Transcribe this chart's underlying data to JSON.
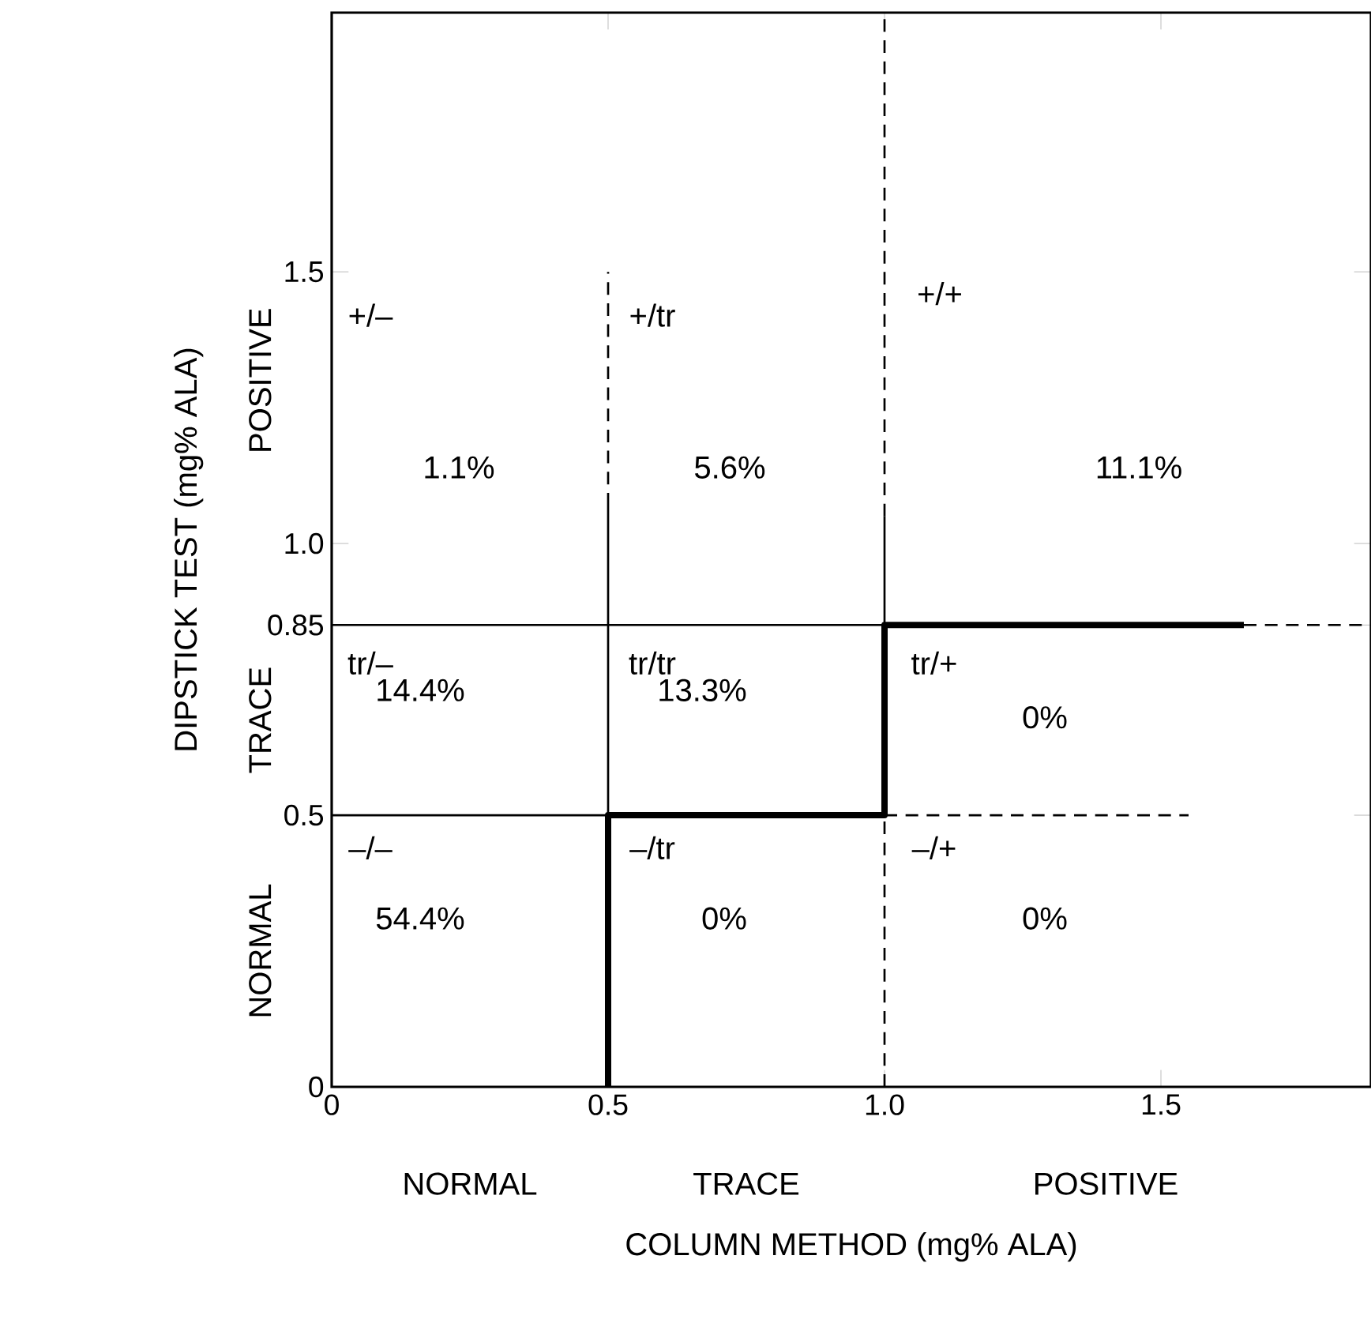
{
  "chart_data": {
    "type": "line",
    "xlabel": "COLUMN METHOD (mg% ALA)",
    "ylabel": "DIPSTICK TEST (mg% ALA)",
    "xlim": [
      0,
      1.88
    ],
    "ylim": [
      0,
      1.977
    ],
    "xticks": [
      {
        "value": 0,
        "label": "0"
      },
      {
        "value": 0.5,
        "label": "0.5"
      },
      {
        "value": 1,
        "label": "1.0"
      },
      {
        "value": 1.5,
        "label": "1.5"
      }
    ],
    "yticks": [
      {
        "value": 0,
        "label": "0"
      },
      {
        "value": 0.5,
        "label": "0.5"
      },
      {
        "value": 0.85,
        "label": "0.85"
      },
      {
        "value": 1,
        "label": "1.0"
      },
      {
        "value": 1.5,
        "label": "1.5"
      }
    ],
    "series": [
      {
        "type": "step",
        "color": "#000000",
        "x": [
          0.5,
          1.0,
          1.65
        ],
        "values": [
          0,
          0.5,
          0.85
        ]
      },
      {
        "color": "#000000",
        "line_style": "dashed",
        "x": [
          0.5,
          0.5
        ],
        "values": [
          1.07,
          1.5
        ]
      },
      {
        "color": "#000000",
        "line_style": "solid",
        "x": [
          0.5,
          0.5
        ],
        "values": [
          0.5,
          1.07
        ]
      },
      {
        "color": "#000000",
        "line_style": "dashed",
        "x": [
          1.0,
          1.0
        ],
        "values": [
          0,
          0.5
        ]
      },
      {
        "color": "#000000",
        "line_style": "solid",
        "x": [
          1.0,
          1.0
        ],
        "values": [
          0.85,
          1.05
        ]
      },
      {
        "color": "#000000",
        "line_style": "dashed",
        "x": [
          1.0,
          1.0
        ],
        "values": [
          1.05,
          1.977
        ]
      },
      {
        "color": "#000000",
        "line_style": "solid",
        "x": [
          0,
          1.0
        ],
        "values": [
          0.85,
          0.85
        ]
      },
      {
        "color": "#000000",
        "line_style": "dashed",
        "x": [
          1.65,
          1.88
        ],
        "values": [
          0.85,
          0.85
        ]
      },
      {
        "color": "#000000",
        "line_style": "solid",
        "x": [
          0,
          0.5
        ],
        "values": [
          0.5,
          0.5
        ]
      },
      {
        "color": "#000000",
        "line_style": "dashed",
        "x": [
          1.0,
          1.55
        ],
        "values": [
          0.5,
          0.5
        ]
      }
    ],
    "annotations": [
      "1.1%",
      "5.6%",
      "11.1%",
      "14.4%",
      "13.3%",
      "0%",
      "54.4%",
      "0%",
      "0%",
      "+/–",
      "+/tr",
      "+/+",
      "tr/–",
      "tr/tr",
      "tr/+",
      "–/–",
      "–/tr",
      "–/+",
      "NORMAL",
      "TRACE",
      "POSITIVE",
      "NORMAL",
      "TRACE",
      "POSITIVE"
    ]
  }
}
